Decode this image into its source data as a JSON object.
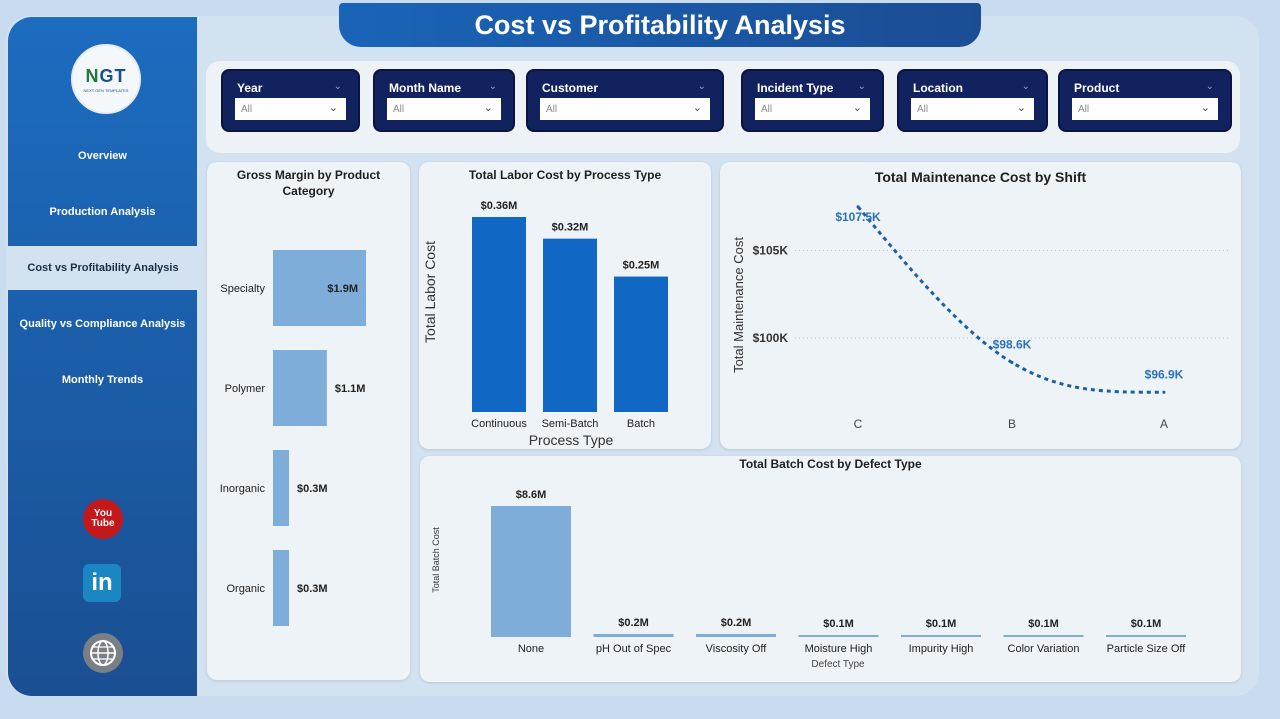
{
  "page": {
    "title": "Cost vs Profitability Analysis"
  },
  "logo": {
    "brand_a": "N",
    "brand_b": "GT",
    "tagline": "NEXT GEN TEMPLATES"
  },
  "nav": {
    "items": [
      {
        "label": "Overview",
        "active": false
      },
      {
        "label": "Production Analysis",
        "active": false
      },
      {
        "label": "Cost vs Profitability Analysis",
        "active": true
      },
      {
        "label": "Quality vs Compliance Analysis",
        "active": false
      },
      {
        "label": "Monthly Trends",
        "active": false
      }
    ]
  },
  "social": {
    "youtube_a": "You",
    "youtube_b": "Tube",
    "linkedin": "in"
  },
  "filters": [
    {
      "label": "Year",
      "value": "All"
    },
    {
      "label": "Month Name",
      "value": "All"
    },
    {
      "label": "Customer",
      "value": "All"
    },
    {
      "label": "Incident Type",
      "value": "All"
    },
    {
      "label": "Location",
      "value": "All"
    },
    {
      "label": "Product",
      "value": "All"
    }
  ],
  "colors": {
    "primary": "#1a64b8",
    "bar_dark": "#1167c4",
    "bar_light": "#7fadd9",
    "slicer": "#12225e",
    "line": "#1a5fa8"
  },
  "icons": {
    "chevron": "chevron-down-icon",
    "dropdown": "dropdown-icon",
    "youtube": "youtube-icon",
    "linkedin": "linkedin-icon",
    "web": "globe-icon"
  },
  "chart_data": [
    {
      "id": "gross_margin",
      "type": "bar",
      "orientation": "horizontal",
      "title": "Gross Margin by Product Category",
      "categories": [
        "Specialty",
        "Polymer",
        "Inorganic",
        "Organic"
      ],
      "values": [
        1.9,
        1.1,
        0.3,
        0.3
      ],
      "labels": [
        "$1.9M",
        "$1.1M",
        "$0.3M",
        "$0.3M"
      ],
      "xlim": [
        0,
        1.9
      ]
    },
    {
      "id": "labor_cost",
      "type": "bar",
      "title": "Total Labor Cost by Process Type",
      "xlabel": "Process Type",
      "ylabel": "Total Labor Cost",
      "categories": [
        "Continuous",
        "Semi-Batch",
        "Batch"
      ],
      "values": [
        0.36,
        0.32,
        0.25
      ],
      "labels": [
        "$0.36M",
        "$0.32M",
        "$0.25M"
      ],
      "ylim": [
        0,
        0.36
      ]
    },
    {
      "id": "maintenance_cost",
      "type": "line",
      "title": "Total Maintenance Cost by Shift",
      "ylabel": "Total Maintenance Cost",
      "categories": [
        "C",
        "B",
        "A"
      ],
      "values": [
        107.5,
        98.6,
        96.9
      ],
      "labels": [
        "$107.5K",
        "$98.6K",
        "$96.9K"
      ],
      "yticks": [
        100,
        105
      ],
      "ytick_labels": [
        "$100K",
        "$105K"
      ],
      "ylim": [
        96.0,
        108.0
      ]
    },
    {
      "id": "batch_cost",
      "type": "bar",
      "title": "Total Batch Cost by Defect Type",
      "xlabel": "Defect Type",
      "ylabel": "Total Batch Cost",
      "categories": [
        "None",
        "pH Out of Spec",
        "Viscosity Off",
        "Moisture High",
        "Impurity High",
        "Color Variation",
        "Particle Size Off"
      ],
      "values": [
        8.6,
        0.2,
        0.2,
        0.1,
        0.1,
        0.1,
        0.1
      ],
      "labels": [
        "$8.6M",
        "$0.2M",
        "$0.2M",
        "$0.1M",
        "$0.1M",
        "$0.1M",
        "$0.1M"
      ],
      "ylim": [
        0,
        8.6
      ]
    }
  ]
}
